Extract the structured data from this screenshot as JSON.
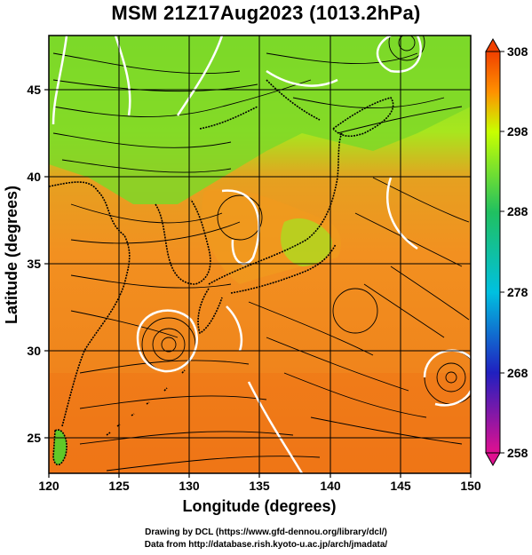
{
  "title": "MSM 21Z17Aug2023 (1013.2hPa)",
  "map": {
    "lon_range": [
      120,
      150
    ],
    "lat_range": [
      22.4,
      47.6
    ],
    "lon_ticks": [
      120,
      125,
      130,
      135,
      140,
      145,
      150
    ],
    "lat_ticks": [
      25,
      30,
      35,
      40,
      45
    ],
    "lon_tick_labels": [
      "120",
      "125",
      "130",
      "135",
      "140",
      "145",
      "150"
    ],
    "lat_tick_labels": [
      "25",
      "30",
      "35",
      "40",
      "45"
    ],
    "xlabel": "Longitude (degrees)",
    "ylabel": "Latitude  (degrees)",
    "grid": true
  },
  "colorbar": {
    "min": 258,
    "max": 308,
    "labels": [
      "308",
      "298",
      "288",
      "278",
      "268",
      "258"
    ],
    "stops": [
      "#e01090",
      "#2020c0",
      "#00c0e0",
      "#20c060",
      "#c8ff00",
      "#ff9000",
      "#f04000"
    ]
  },
  "credits": {
    "line1": "Drawing by DCL (https://www.gfd-dennou.org/library/dcl/)",
    "line2": "Data from http://database.rish.kyoto-u.ac.jp/arch/jmadata/"
  }
}
